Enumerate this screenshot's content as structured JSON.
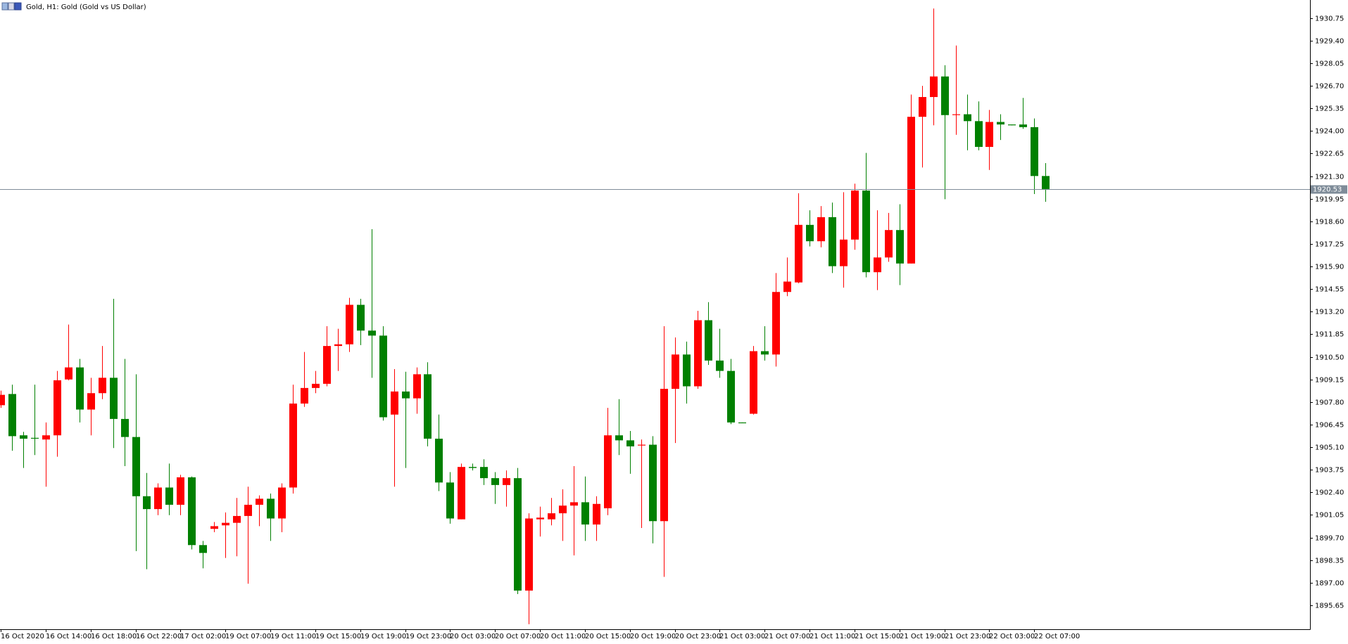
{
  "chart_data": {
    "type": "candlestick",
    "title": "Gold, H1:  Gold (Gold vs US Dollar)",
    "categories": [
      "16 Oct 2020",
      null,
      null,
      null,
      "16 Oct 14:00",
      null,
      null,
      null,
      "16 Oct 18:00",
      null,
      null,
      null,
      "16 Oct 22:00",
      null,
      null,
      null,
      "17 Oct 02:00",
      null,
      null,
      null,
      "19 Oct 07:00",
      null,
      null,
      null,
      "19 Oct 11:00",
      null,
      null,
      null,
      "19 Oct 15:00",
      null,
      null,
      null,
      "19 Oct 19:00",
      null,
      null,
      null,
      "19 Oct 23:00",
      null,
      null,
      null,
      "20 Oct 03:00",
      null,
      null,
      null,
      "20 Oct 07:00",
      null,
      null,
      null,
      "20 Oct 11:00",
      null,
      null,
      null,
      "20 Oct 15:00",
      null,
      null,
      null,
      "20 Oct 19:00",
      null,
      null,
      null,
      "20 Oct 23:00",
      null,
      null,
      null,
      "21 Oct 03:00",
      null,
      null,
      null,
      "21 Oct 07:00",
      null,
      null,
      null,
      "21 Oct 11:00",
      null,
      null,
      null,
      "21 Oct 15:00",
      null,
      null,
      null,
      "21 Oct 19:00",
      null,
      null,
      null,
      "21 Oct 23:00",
      null,
      null,
      null,
      "22 Oct 03:00",
      null,
      null,
      null,
      "22 Oct 07:00",
      null
    ],
    "open": [
      1907.61,
      1908.28,
      1905.81,
      1905.66,
      1905.56,
      1905.81,
      1909.15,
      1909.87,
      1907.35,
      1908.33,
      1909.25,
      1906.79,
      1905.71,
      1902.17,
      1901.4,
      1902.69,
      1901.66,
      1903.3,
      1899.25,
      1900.22,
      1900.43,
      1900.58,
      1900.99,
      1901.66,
      1902.02,
      1900.84,
      1902.69,
      1907.71,
      1908.64,
      1908.89,
      1911.15,
      1911.25,
      1913.61,
      1912.07,
      1911.77,
      1907.05,
      1908.43,
      1908.02,
      1909.46,
      1905.61,
      1902.99,
      1900.79,
      1903.92,
      1903.92,
      1903.25,
      1902.84,
      1903.25,
      1896.53,
      1900.79,
      1900.79,
      1901.15,
      1901.61,
      1901.81,
      1900.48,
      1901.45,
      1905.81,
      1905.51,
      1905.2,
      1905.25,
      1900.68,
      1908.59,
      1910.64,
      1908.74,
      1912.69,
      1910.28,
      1909.66,
      1906.58,
      1907.1,
      1910.84,
      1910.64,
      1914.38,
      1914.95,
      1918.39,
      1917.41,
      1918.85,
      1915.92,
      1917.51,
      1920.44,
      1915.56,
      1916.44,
      1918.08,
      1916.08,
      1924.85,
      1926.03,
      1927.26,
      1924.95,
      1925.0,
      1924.59,
      1923.05,
      1924.54,
      1924.39,
      1924.39,
      1924.23,
      1921.31
    ],
    "high": [
      1908.48,
      1908.84,
      1906.02,
      1908.84,
      1906.58,
      1909.66,
      1912.43,
      1910.38,
      1909.25,
      1911.15,
      1913.97,
      1910.38,
      1909.46,
      1903.56,
      1902.94,
      1904.12,
      1903.45,
      1903.35,
      1899.5,
      1900.63,
      1901.2,
      1902.07,
      1902.74,
      1902.22,
      1902.33,
      1902.94,
      1908.84,
      1910.79,
      1909.66,
      1912.33,
      1912.18,
      1914.03,
      1913.97,
      1918.13,
      1912.33,
      1909.77,
      1909.61,
      1909.87,
      1910.18,
      1907.05,
      1903.61,
      1904.12,
      1904.12,
      1904.38,
      1903.61,
      1903.71,
      1903.86,
      1901.15,
      1901.55,
      1902.07,
      1902.58,
      1903.97,
      1903.35,
      1902.17,
      1907.45,
      1907.97,
      1906.07,
      1905.56,
      1905.76,
      1912.33,
      1911.66,
      1911.41,
      1913.25,
      1913.77,
      1912.18,
      1910.38,
      1906.58,
      1911.15,
      1912.33,
      1915.51,
      1916.44,
      1920.28,
      1919.26,
      1919.51,
      1919.72,
      1920.34,
      1920.85,
      1922.69,
      1919.26,
      1919.1,
      1919.62,
      1926.18,
      1926.7,
      1931.32,
      1927.93,
      1929.11,
      1926.18,
      1925.77,
      1925.26,
      1925.0,
      1924.39,
      1925.98,
      1924.75,
      1922.08
    ],
    "low": [
      1907.45,
      1904.89,
      1903.86,
      1904.63,
      1902.74,
      1904.53,
      1909.1,
      1906.58,
      1905.81,
      1907.97,
      1905.05,
      1903.97,
      1898.89,
      1897.81,
      1901.04,
      1901.04,
      1901.04,
      1898.99,
      1897.86,
      1900.02,
      1898.48,
      1898.58,
      1896.94,
      1900.38,
      1899.5,
      1900.02,
      1902.33,
      1907.51,
      1908.33,
      1908.74,
      1909.66,
      1910.79,
      1911.2,
      1909.25,
      1906.69,
      1902.74,
      1903.86,
      1907.1,
      1905.15,
      1902.48,
      1900.53,
      1900.79,
      1903.71,
      1902.84,
      1901.71,
      1901.55,
      1896.32,
      1894.52,
      1899.76,
      1900.43,
      1899.5,
      1898.63,
      1899.5,
      1899.5,
      1901.04,
      1904.63,
      1903.51,
      1900.27,
      1899.35,
      1897.35,
      1905.35,
      1907.71,
      1908.59,
      1910.02,
      1909.25,
      1906.48,
      1906.53,
      1907.05,
      1910.28,
      1909.92,
      1914.13,
      1914.9,
      1917.1,
      1917.05,
      1915.51,
      1914.64,
      1916.9,
      1915.25,
      1914.49,
      1916.18,
      1914.79,
      1916.08,
      1921.82,
      1924.34,
      1919.92,
      1923.77,
      1922.85,
      1922.85,
      1921.67,
      1923.46,
      1924.34,
      1924.13,
      1920.23,
      1919.77
    ],
    "close": [
      1908.23,
      1905.76,
      1905.61,
      1905.61,
      1905.81,
      1909.1,
      1909.87,
      1907.35,
      1908.33,
      1909.25,
      1906.79,
      1905.71,
      1902.17,
      1901.4,
      1902.69,
      1901.66,
      1903.3,
      1899.25,
      1898.78,
      1900.38,
      1900.58,
      1900.99,
      1901.66,
      1902.02,
      1900.84,
      1902.69,
      1907.71,
      1908.64,
      1908.89,
      1911.15,
      1911.25,
      1913.61,
      1912.07,
      1911.77,
      1906.89,
      1908.43,
      1908.02,
      1909.46,
      1905.61,
      1902.99,
      1900.84,
      1903.92,
      1903.86,
      1903.25,
      1902.84,
      1903.25,
      1896.53,
      1900.84,
      1900.89,
      1901.15,
      1901.61,
      1901.81,
      1900.48,
      1901.71,
      1905.81,
      1905.51,
      1905.15,
      1905.25,
      1900.68,
      1908.59,
      1910.64,
      1908.74,
      1912.69,
      1910.28,
      1909.66,
      1906.58,
      1906.53,
      1910.84,
      1910.64,
      1914.38,
      1915.0,
      1918.39,
      1917.41,
      1918.85,
      1915.92,
      1917.51,
      1920.44,
      1915.56,
      1916.44,
      1918.08,
      1916.08,
      1924.85,
      1926.03,
      1927.26,
      1924.95,
      1925.0,
      1924.59,
      1923.05,
      1924.54,
      1924.39,
      1924.34,
      1924.23,
      1921.31,
      1920.53
    ],
    "up_color": "#ff0000",
    "down_color": "#008000",
    "current_price": 1920.53,
    "current_price_color": "#7f8c99",
    "ylim": [
      1894.22,
      1931.83
    ],
    "yticks": [
      1895.65,
      {
        "value": 1897,
        "label": "1897.00"
      },
      1898.35,
      {
        "value": 1899.7,
        "label": "1899.70"
      },
      1901.05,
      {
        "value": 1902.4,
        "label": "1902.40"
      },
      1903.75,
      {
        "value": 1905.1,
        "label": "1905.10"
      },
      1906.45,
      {
        "value": 1907.8,
        "label": "1907.80"
      },
      1909.15,
      {
        "value": 1910.5,
        "label": "1910.50"
      },
      1911.85,
      {
        "value": 1913.2,
        "label": "1913.20"
      },
      1914.55,
      {
        "value": 1915.9,
        "label": "1915.90"
      },
      1917.25,
      {
        "value": 1918.6,
        "label": "1918.60"
      },
      1919.95,
      {
        "value": 1921.3,
        "label": "1921.30"
      },
      1922.65,
      {
        "value": 1924,
        "label": "1924.00"
      },
      1925.35,
      {
        "value": 1926.7,
        "label": "1926.70"
      },
      1928.05,
      {
        "value": 1929.4,
        "label": "1929.40"
      },
      1930.75
    ],
    "grid": false
  }
}
